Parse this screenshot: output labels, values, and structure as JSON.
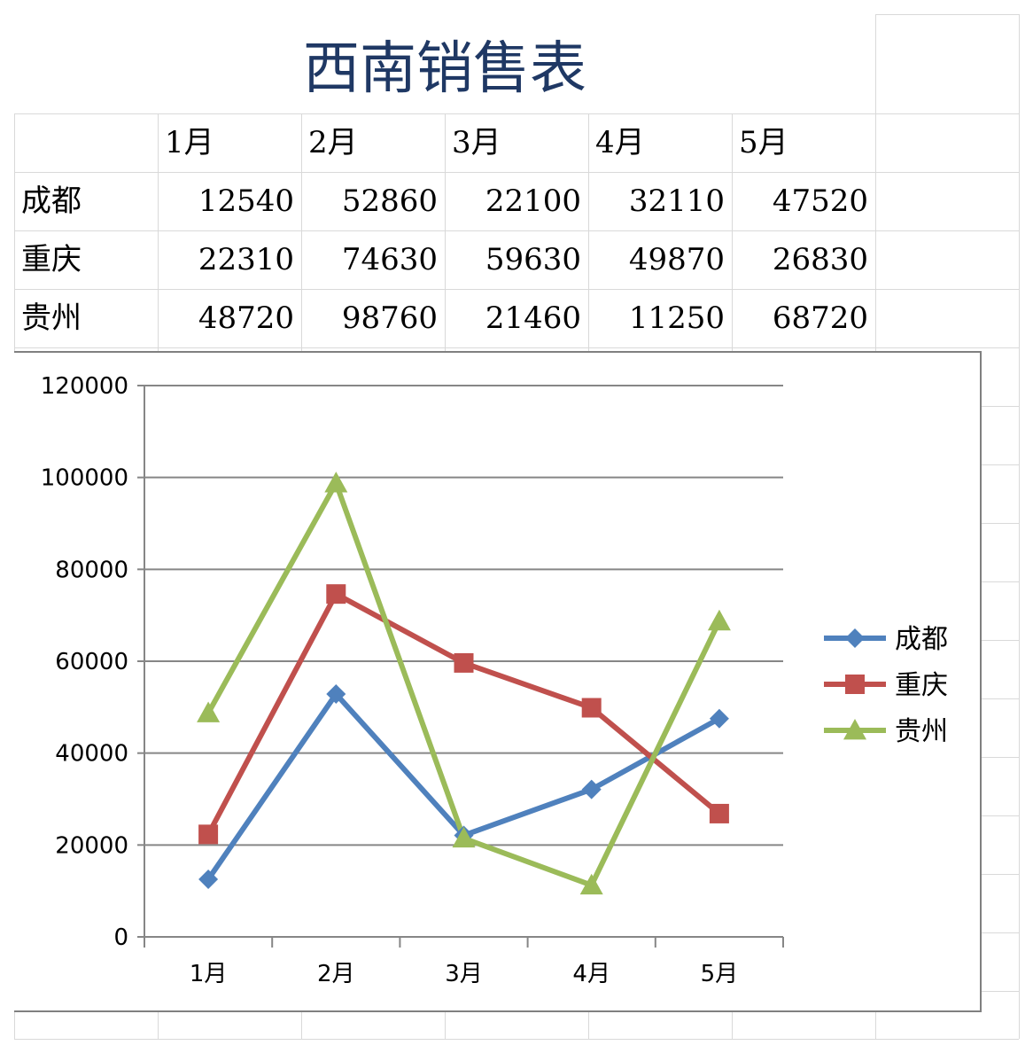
{
  "sheet": {
    "title": "西南销售表",
    "months": [
      "1月",
      "2月",
      "3月",
      "4月",
      "5月"
    ],
    "rows": [
      {
        "name": "成都",
        "values": [
          "12540",
          "52860",
          "22100",
          "32110",
          "47520"
        ]
      },
      {
        "name": "重庆",
        "values": [
          "22310",
          "74630",
          "59630",
          "49870",
          "26830"
        ]
      },
      {
        "name": "贵州",
        "values": [
          "48720",
          "98760",
          "21460",
          "11250",
          "68720"
        ]
      }
    ]
  },
  "chart_data": {
    "type": "line",
    "categories": [
      "1月",
      "2月",
      "3月",
      "4月",
      "5月"
    ],
    "series": [
      {
        "name": "成都",
        "values": [
          12540,
          52860,
          22100,
          32110,
          47520
        ],
        "color": "#4f81bd",
        "marker": "diamond"
      },
      {
        "name": "重庆",
        "values": [
          22310,
          74630,
          59630,
          49870,
          26830
        ],
        "color": "#c0504d",
        "marker": "square"
      },
      {
        "name": "贵州",
        "values": [
          48720,
          98760,
          21460,
          11250,
          68720
        ],
        "color": "#9bbb59",
        "marker": "triangle"
      }
    ],
    "yticks": [
      "0",
      "20000",
      "40000",
      "60000",
      "80000",
      "100000",
      "120000"
    ],
    "ylim": [
      0,
      120000
    ],
    "grid": true,
    "legend": "right",
    "title": "",
    "xlabel": "",
    "ylabel": ""
  }
}
